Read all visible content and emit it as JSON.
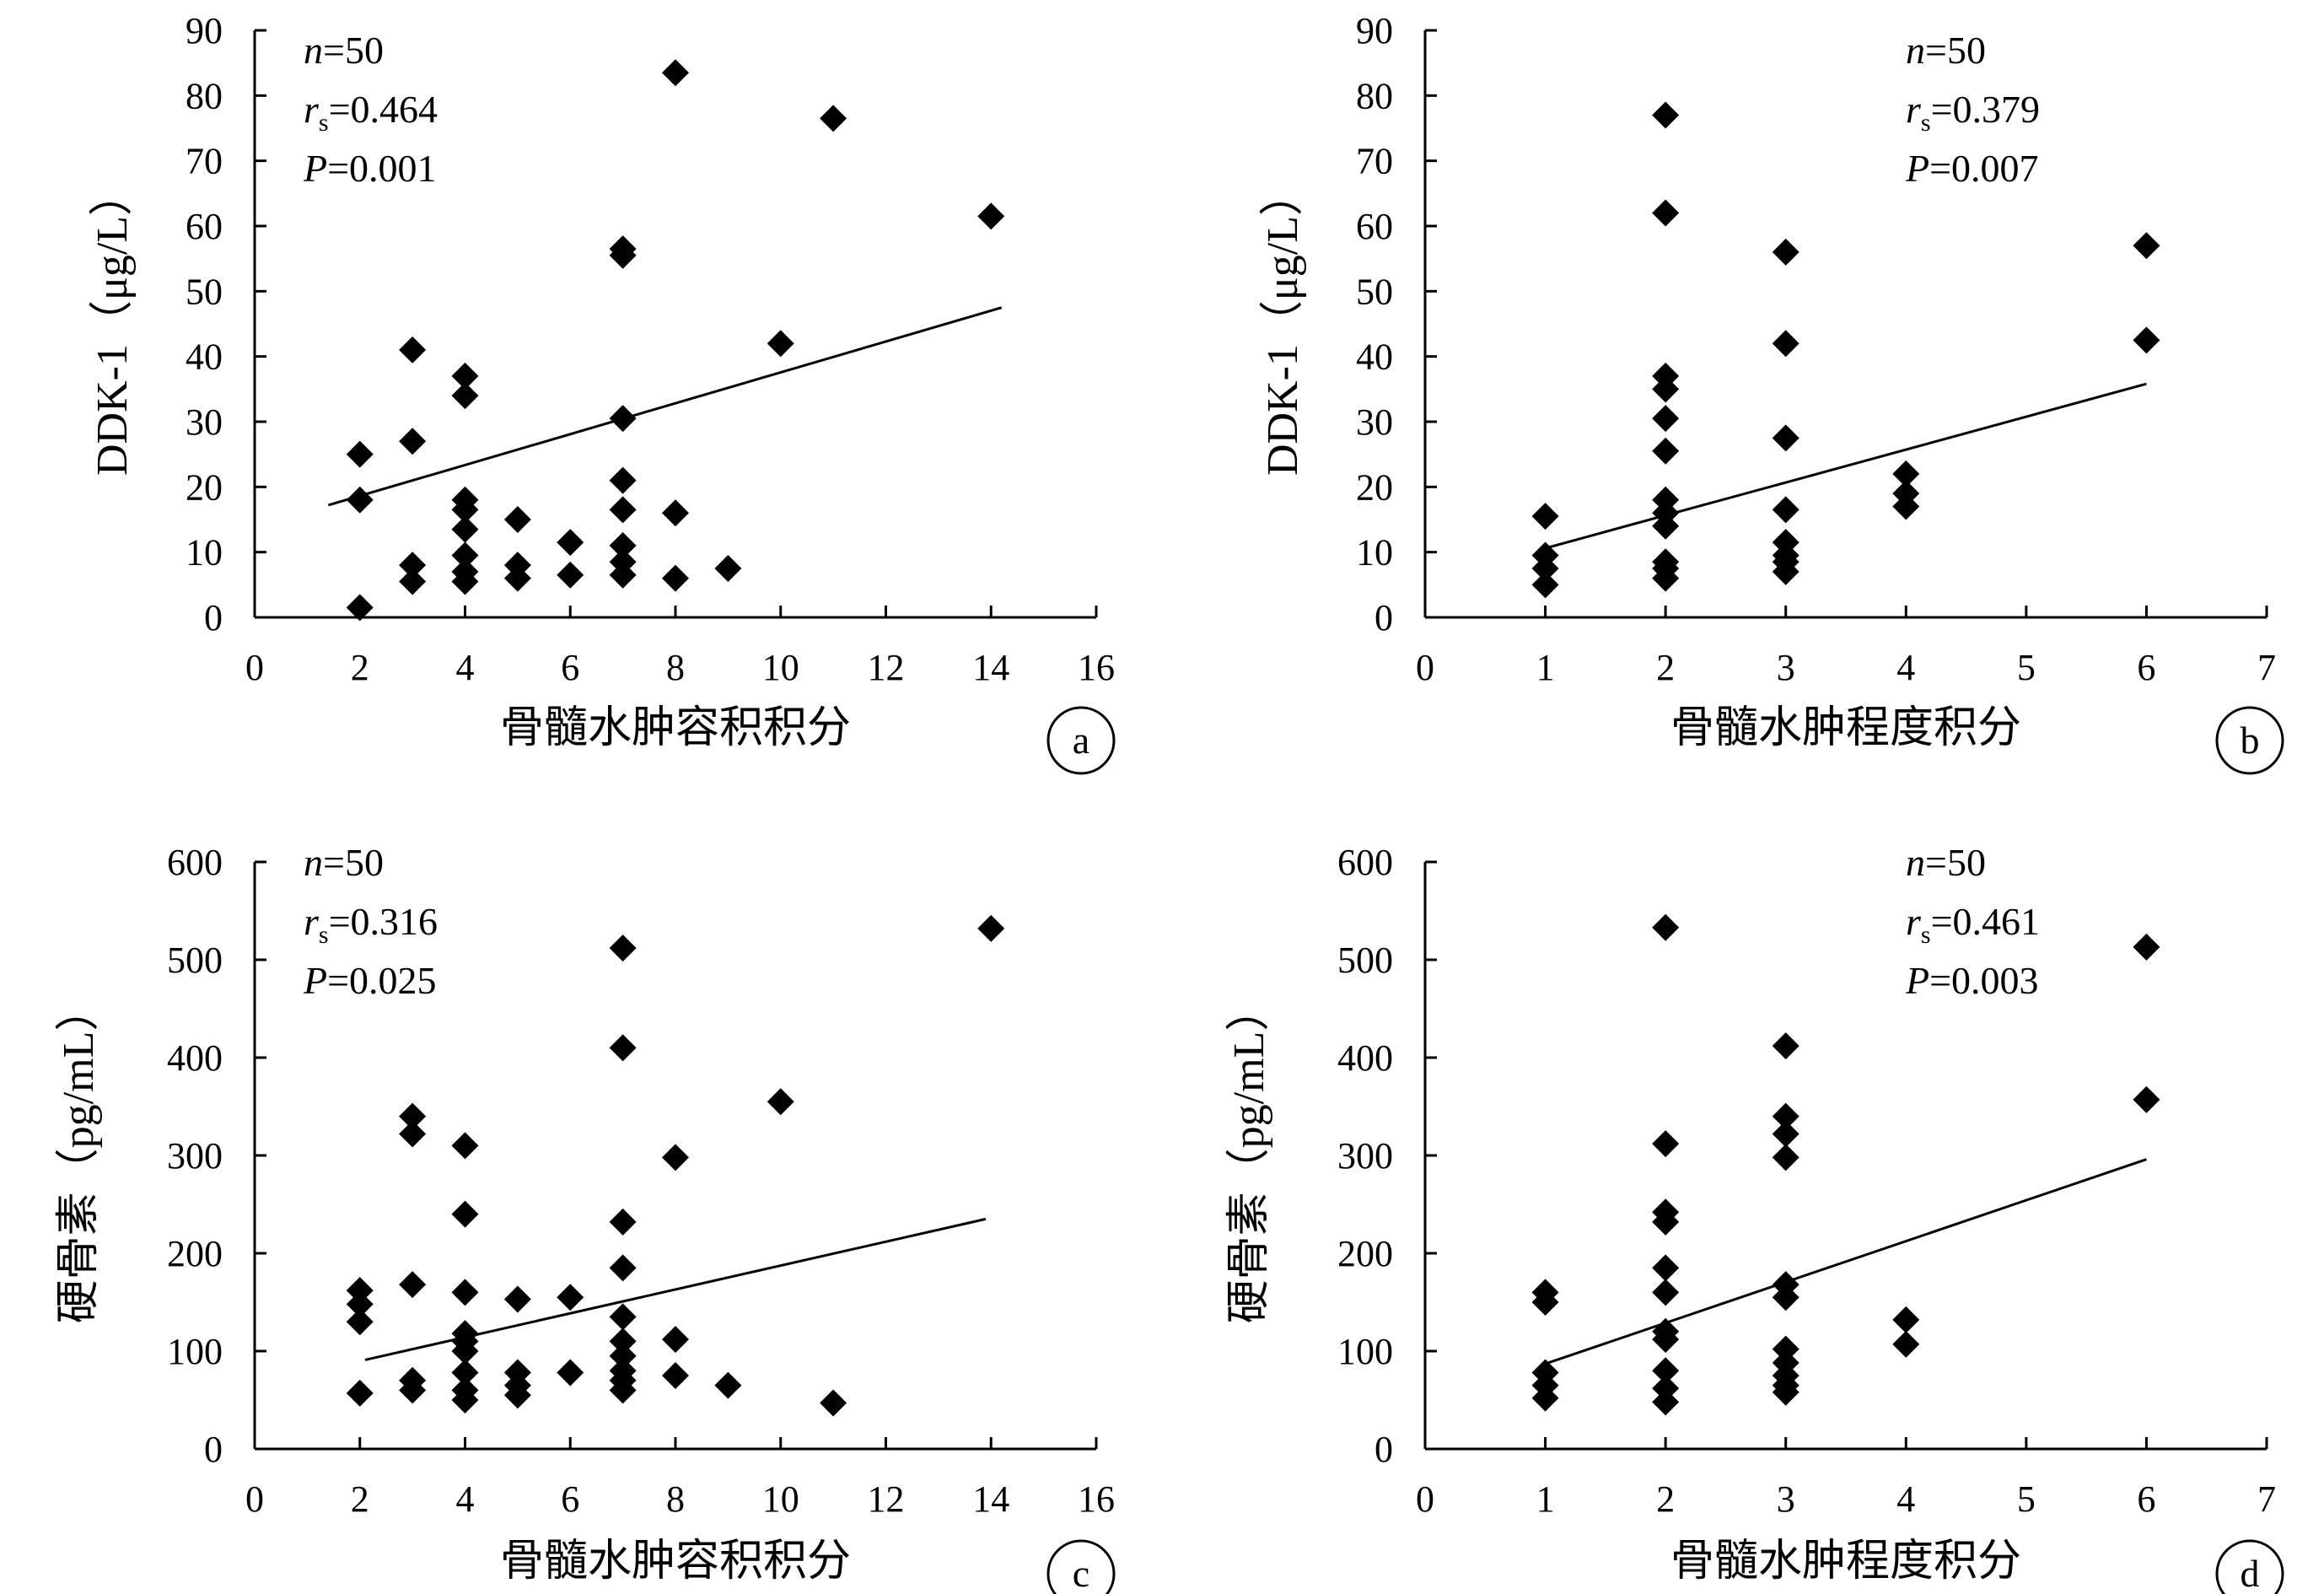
{
  "chart_data": [
    {
      "type": "scatter",
      "panel_label": "a",
      "xlabel": "骨髓水肿容积积分",
      "ylabel": "DDK-1（μg/L）",
      "xlim": [
        0,
        16
      ],
      "ylim": [
        0,
        90
      ],
      "xticks": [
        0,
        2,
        4,
        6,
        8,
        10,
        12,
        14,
        16
      ],
      "yticks": [
        0,
        10,
        20,
        30,
        40,
        50,
        60,
        70,
        80,
        90
      ],
      "stats": {
        "n_label": "n",
        "n_value": "=50",
        "r_label": "r",
        "r_sub": "s",
        "r_value": "=0.464",
        "p_label": "P",
        "p_value": "=0.001"
      },
      "points": [
        [
          2,
          25
        ],
        [
          2,
          18
        ],
        [
          2,
          1.5
        ],
        [
          3,
          41
        ],
        [
          3,
          27
        ],
        [
          3,
          8
        ],
        [
          3,
          5.5
        ],
        [
          4,
          37
        ],
        [
          4,
          34
        ],
        [
          4,
          18
        ],
        [
          4,
          16.5
        ],
        [
          4,
          13.5
        ],
        [
          4,
          9.5
        ],
        [
          4,
          7
        ],
        [
          4,
          5.5
        ],
        [
          5,
          15
        ],
        [
          5,
          8
        ],
        [
          5,
          6
        ],
        [
          6,
          11.5
        ],
        [
          6,
          6.5
        ],
        [
          7,
          56.5
        ],
        [
          7,
          55.5
        ],
        [
          7,
          30.5
        ],
        [
          7,
          21
        ],
        [
          7,
          16.5
        ],
        [
          7,
          11
        ],
        [
          7,
          8.5
        ],
        [
          7,
          6.5
        ],
        [
          8,
          83.5
        ],
        [
          8,
          16
        ],
        [
          8,
          6
        ],
        [
          9,
          7.5
        ],
        [
          10,
          42
        ],
        [
          11,
          76.5
        ],
        [
          14,
          61.5
        ]
      ],
      "fit_line": {
        "x": [
          1.4,
          14.2
        ],
        "y": [
          17.2,
          47.5
        ]
      }
    },
    {
      "type": "scatter",
      "panel_label": "b",
      "xlabel": "骨髓水肿程度积分",
      "ylabel": "DDK-1（μg/L）",
      "xlim": [
        0,
        7
      ],
      "ylim": [
        0,
        90
      ],
      "xticks": [
        0,
        1,
        2,
        3,
        4,
        5,
        6,
        7
      ],
      "yticks": [
        0,
        10,
        20,
        30,
        40,
        50,
        60,
        70,
        80,
        90
      ],
      "stats": {
        "n_label": "n",
        "n_value": "=50",
        "r_label": "r",
        "r_sub": "s",
        "r_value": "=0.379",
        "p_label": "P",
        "p_value": "=0.007"
      },
      "points": [
        [
          1,
          15.5
        ],
        [
          1,
          9.5
        ],
        [
          1,
          7.5
        ],
        [
          1,
          5
        ],
        [
          2,
          77
        ],
        [
          2,
          62
        ],
        [
          2,
          37
        ],
        [
          2,
          35
        ],
        [
          2,
          30.5
        ],
        [
          2,
          25.5
        ],
        [
          2,
          18
        ],
        [
          2,
          16
        ],
        [
          2,
          14
        ],
        [
          2,
          8.5
        ],
        [
          2,
          7.5
        ],
        [
          2,
          6
        ],
        [
          3,
          56
        ],
        [
          3,
          42
        ],
        [
          3,
          27.5
        ],
        [
          3,
          16.5
        ],
        [
          3,
          11.5
        ],
        [
          3,
          9.5
        ],
        [
          3,
          8.5
        ],
        [
          3,
          7
        ],
        [
          4,
          22
        ],
        [
          4,
          19
        ],
        [
          4,
          17
        ],
        [
          6,
          57
        ],
        [
          6,
          42.5
        ]
      ],
      "fit_line": {
        "x": [
          1,
          6
        ],
        "y": [
          10.6,
          35.8
        ]
      }
    },
    {
      "type": "scatter",
      "panel_label": "c",
      "xlabel": "骨髓水肿容积积分",
      "ylabel": "硬骨素（pg/mL）",
      "xlim": [
        0,
        16
      ],
      "ylim": [
        0,
        600
      ],
      "xticks": [
        0,
        2,
        4,
        6,
        8,
        10,
        12,
        14,
        16
      ],
      "yticks": [
        0,
        100,
        200,
        300,
        400,
        500,
        600
      ],
      "stats": {
        "n_label": "n",
        "n_value": "=50",
        "r_label": "r",
        "r_sub": "s",
        "r_value": "=0.316",
        "p_label": "P",
        "p_value": "=0.025"
      },
      "points": [
        [
          2,
          162
        ],
        [
          2,
          148
        ],
        [
          2,
          130
        ],
        [
          2,
          57
        ],
        [
          3,
          340
        ],
        [
          3,
          322
        ],
        [
          3,
          168
        ],
        [
          3,
          70
        ],
        [
          3,
          60
        ],
        [
          4,
          310
        ],
        [
          4,
          240
        ],
        [
          4,
          160
        ],
        [
          4,
          118
        ],
        [
          4,
          110
        ],
        [
          4,
          100
        ],
        [
          4,
          78
        ],
        [
          4,
          60
        ],
        [
          4,
          50
        ],
        [
          5,
          153
        ],
        [
          5,
          78
        ],
        [
          5,
          65
        ],
        [
          5,
          55
        ],
        [
          6,
          155
        ],
        [
          6,
          78
        ],
        [
          7,
          512
        ],
        [
          7,
          410
        ],
        [
          7,
          232
        ],
        [
          7,
          185
        ],
        [
          7,
          135
        ],
        [
          7,
          110
        ],
        [
          7,
          95
        ],
        [
          7,
          80
        ],
        [
          7,
          70
        ],
        [
          7,
          60
        ],
        [
          8,
          298
        ],
        [
          8,
          112
        ],
        [
          8,
          75
        ],
        [
          9,
          65
        ],
        [
          10,
          355
        ],
        [
          11,
          47
        ],
        [
          14,
          532
        ]
      ],
      "fit_line": {
        "x": [
          2.1,
          13.9
        ],
        "y": [
          91,
          235
        ]
      }
    },
    {
      "type": "scatter",
      "panel_label": "d",
      "xlabel": "骨髓水肿程度积分",
      "ylabel": "硬骨素（pg/mL）",
      "xlim": [
        0,
        7
      ],
      "ylim": [
        0,
        600
      ],
      "xticks": [
        0,
        1,
        2,
        3,
        4,
        5,
        6,
        7
      ],
      "yticks": [
        0,
        100,
        200,
        300,
        400,
        500,
        600
      ],
      "stats": {
        "n_label": "n",
        "n_value": "=50",
        "r_label": "r",
        "r_sub": "s",
        "r_value": "=0.461",
        "p_label": "P",
        "p_value": "=0.003"
      },
      "points": [
        [
          1,
          160
        ],
        [
          1,
          150
        ],
        [
          1,
          78
        ],
        [
          1,
          65
        ],
        [
          1,
          52
        ],
        [
          2,
          533
        ],
        [
          2,
          312
        ],
        [
          2,
          242
        ],
        [
          2,
          232
        ],
        [
          2,
          185
        ],
        [
          2,
          160
        ],
        [
          2,
          120
        ],
        [
          2,
          112
        ],
        [
          2,
          80
        ],
        [
          2,
          62
        ],
        [
          2,
          48
        ],
        [
          3,
          412
        ],
        [
          3,
          340
        ],
        [
          3,
          322
        ],
        [
          3,
          298
        ],
        [
          3,
          168
        ],
        [
          3,
          155
        ],
        [
          3,
          102
        ],
        [
          3,
          88
        ],
        [
          3,
          75
        ],
        [
          3,
          65
        ],
        [
          3,
          58
        ],
        [
          4,
          132
        ],
        [
          4,
          107
        ],
        [
          6,
          513
        ],
        [
          6,
          357
        ]
      ],
      "fit_line": {
        "x": [
          1,
          6
        ],
        "y": [
          87,
          296
        ]
      }
    }
  ]
}
